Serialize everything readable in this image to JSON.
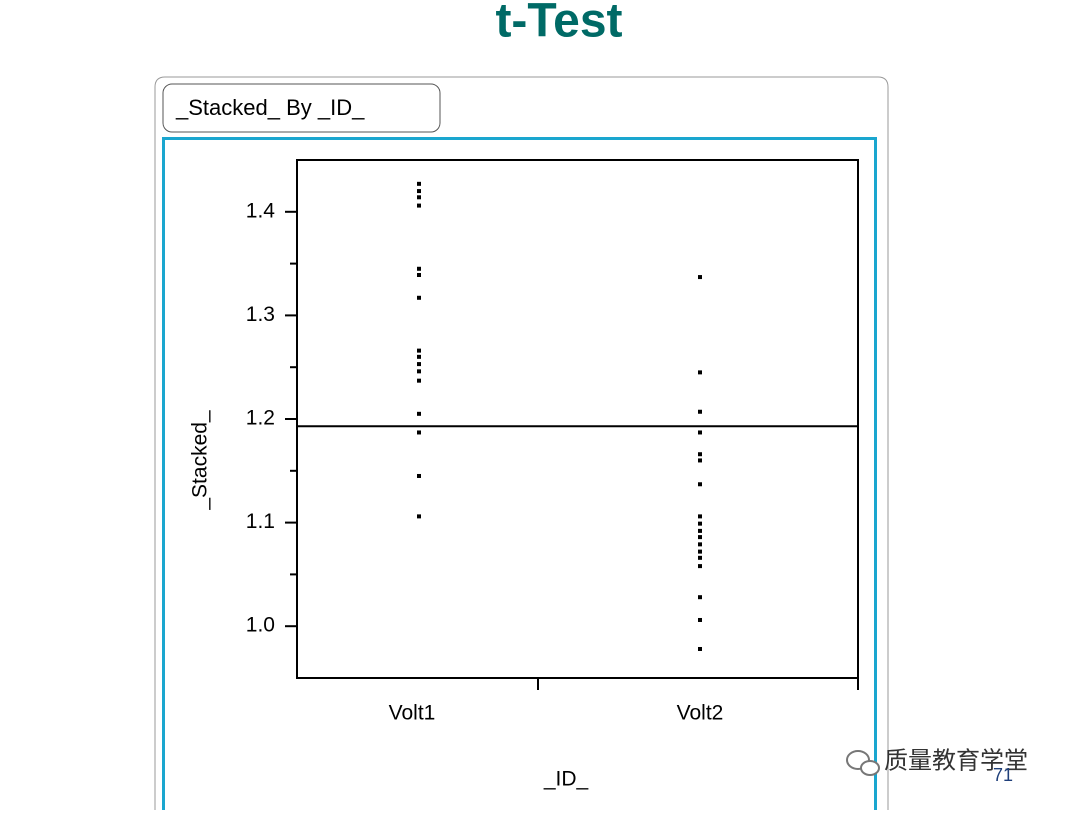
{
  "slide": {
    "title": "t-Test",
    "page_number": "71",
    "watermark": "质量教育学堂"
  },
  "chart_data": {
    "type": "scatter",
    "title": "_Stacked_ By _ID_",
    "x_label": "_ID_",
    "y_label": "_Stacked_",
    "categories": [
      "Volt1",
      "Volt2"
    ],
    "values": [
      [
        1.427,
        1.42,
        1.414,
        1.406,
        1.345,
        1.339,
        1.317,
        1.266,
        1.26,
        1.253,
        1.246,
        1.237,
        1.205,
        1.187,
        1.145,
        1.106
      ],
      [
        1.337,
        1.245,
        1.207,
        1.187,
        1.166,
        1.16,
        1.137,
        1.106,
        1.099,
        1.092,
        1.086,
        1.079,
        1.072,
        1.066,
        1.058,
        1.028,
        1.006,
        0.978
      ]
    ],
    "color": "#000000",
    "reference_line": 1.193,
    "ylim": [
      0.95,
      1.45
    ],
    "yticks": [
      {
        "value": 1,
        "label": "1.0"
      },
      1.1,
      1.2,
      1.3,
      1.4
    ],
    "yminor_ticks": [
      1.05,
      1.15,
      1.25,
      1.35
    ]
  }
}
